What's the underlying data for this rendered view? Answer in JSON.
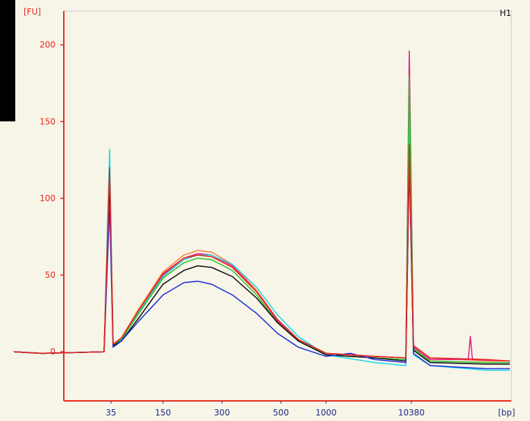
{
  "chart_data": {
    "type": "line",
    "title": "",
    "panel_label": "H1",
    "y_unit_label": "[FU]",
    "x_unit_label": "[bp]",
    "ylim": [
      -32,
      222
    ],
    "y_ticks": [
      0,
      50,
      100,
      150,
      200
    ],
    "x_ticks": [
      "35",
      "150",
      "300",
      "500",
      "1000",
      "10380"
    ],
    "grid": true,
    "legend": "none",
    "x_category_positions": {
      "35": 160,
      "150": 235,
      "300": 320,
      "500": 405,
      "1000": 470,
      "10380": 593
    },
    "series": [
      {
        "color": "#ff8040",
        "points": [
          [
            20,
            0
          ],
          [
            60,
            -1
          ],
          [
            150,
            0
          ],
          [
            158,
            120
          ],
          [
            163,
            5
          ],
          [
            175,
            9
          ],
          [
            200,
            28
          ],
          [
            235,
            52
          ],
          [
            265,
            63
          ],
          [
            285,
            66
          ],
          [
            305,
            65
          ],
          [
            335,
            57
          ],
          [
            370,
            40
          ],
          [
            400,
            21
          ],
          [
            430,
            8
          ],
          [
            470,
            -1
          ],
          [
            540,
            -3
          ],
          [
            585,
            -4
          ],
          [
            590,
            130
          ],
          [
            596,
            4
          ],
          [
            620,
            -4
          ],
          [
            700,
            -6
          ],
          [
            735,
            -6
          ]
        ]
      },
      {
        "color": "#e0208a",
        "points": [
          [
            20,
            0
          ],
          [
            60,
            -1
          ],
          [
            150,
            0
          ],
          [
            158,
            115
          ],
          [
            163,
            4
          ],
          [
            175,
            8
          ],
          [
            200,
            26
          ],
          [
            235,
            50
          ],
          [
            265,
            61
          ],
          [
            285,
            64
          ],
          [
            305,
            63
          ],
          [
            335,
            56
          ],
          [
            370,
            39
          ],
          [
            400,
            20
          ],
          [
            430,
            8
          ],
          [
            470,
            -1
          ],
          [
            540,
            -3
          ],
          [
            585,
            -4
          ],
          [
            590,
            196
          ],
          [
            596,
            3
          ],
          [
            620,
            -5
          ],
          [
            675,
            -5
          ],
          [
            678,
            10
          ],
          [
            681,
            -5
          ],
          [
            735,
            -6
          ]
        ]
      },
      {
        "color": "#20d8e8",
        "points": [
          [
            20,
            0
          ],
          [
            60,
            -1
          ],
          [
            150,
            0
          ],
          [
            158,
            132
          ],
          [
            163,
            4
          ],
          [
            175,
            8
          ],
          [
            200,
            26
          ],
          [
            235,
            49
          ],
          [
            265,
            60
          ],
          [
            285,
            63
          ],
          [
            305,
            63
          ],
          [
            335,
            57
          ],
          [
            370,
            42
          ],
          [
            400,
            24
          ],
          [
            430,
            10
          ],
          [
            470,
            -2
          ],
          [
            540,
            -7
          ],
          [
            585,
            -9
          ],
          [
            590,
            150
          ],
          [
            596,
            -2
          ],
          [
            620,
            -9
          ],
          [
            700,
            -12
          ],
          [
            735,
            -12
          ]
        ]
      },
      {
        "color": "#30c030",
        "points": [
          [
            20,
            0
          ],
          [
            60,
            -1
          ],
          [
            150,
            0
          ],
          [
            158,
            112
          ],
          [
            163,
            4
          ],
          [
            175,
            8
          ],
          [
            200,
            25
          ],
          [
            235,
            48
          ],
          [
            265,
            58
          ],
          [
            285,
            61
          ],
          [
            305,
            60
          ],
          [
            335,
            53
          ],
          [
            370,
            37
          ],
          [
            400,
            19
          ],
          [
            430,
            7
          ],
          [
            470,
            -2
          ],
          [
            540,
            -4
          ],
          [
            585,
            -5
          ],
          [
            590,
            180
          ],
          [
            596,
            2
          ],
          [
            620,
            -6
          ],
          [
            700,
            -7
          ],
          [
            735,
            -7
          ]
        ]
      },
      {
        "color": "#101010",
        "points": [
          [
            20,
            0
          ],
          [
            60,
            -1
          ],
          [
            150,
            0
          ],
          [
            158,
            108
          ],
          [
            163,
            4
          ],
          [
            175,
            7
          ],
          [
            200,
            22
          ],
          [
            235,
            44
          ],
          [
            265,
            53
          ],
          [
            285,
            56
          ],
          [
            305,
            55
          ],
          [
            335,
            49
          ],
          [
            370,
            35
          ],
          [
            400,
            19
          ],
          [
            430,
            7
          ],
          [
            470,
            -2
          ],
          [
            540,
            -4
          ],
          [
            585,
            -6
          ],
          [
            590,
            125
          ],
          [
            596,
            1
          ],
          [
            620,
            -7
          ],
          [
            700,
            -8
          ],
          [
            735,
            -8
          ]
        ]
      },
      {
        "color": "#2030d8",
        "points": [
          [
            20,
            0
          ],
          [
            60,
            -1
          ],
          [
            150,
            0
          ],
          [
            158,
            96
          ],
          [
            163,
            3
          ],
          [
            175,
            7
          ],
          [
            200,
            20
          ],
          [
            235,
            37
          ],
          [
            265,
            45
          ],
          [
            285,
            46
          ],
          [
            305,
            44
          ],
          [
            335,
            37
          ],
          [
            370,
            25
          ],
          [
            400,
            12
          ],
          [
            430,
            3
          ],
          [
            470,
            -3
          ],
          [
            505,
            -1
          ],
          [
            540,
            -5
          ],
          [
            585,
            -7
          ],
          [
            590,
            128
          ],
          [
            596,
            -1
          ],
          [
            620,
            -9
          ],
          [
            700,
            -11
          ],
          [
            735,
            -11
          ]
        ]
      },
      {
        "color": "#e8251a",
        "points": [
          [
            20,
            0
          ],
          [
            60,
            -1
          ],
          [
            150,
            0
          ],
          [
            158,
            120
          ],
          [
            163,
            5
          ],
          [
            175,
            9
          ],
          [
            200,
            27
          ],
          [
            235,
            51
          ],
          [
            265,
            61
          ],
          [
            285,
            63
          ],
          [
            305,
            62
          ],
          [
            335,
            55
          ],
          [
            370,
            39
          ],
          [
            400,
            21
          ],
          [
            430,
            8
          ],
          [
            470,
            -1
          ],
          [
            540,
            -3
          ],
          [
            585,
            -4
          ],
          [
            590,
            135
          ],
          [
            596,
            4
          ],
          [
            620,
            -4
          ],
          [
            700,
            -5
          ],
          [
            735,
            -6
          ]
        ]
      }
    ]
  },
  "colors": {
    "plot_background": "#f7f5e8",
    "axis_color": "#e8251a",
    "grid_color": "#a8b0c8",
    "label_color": "#1c2a8a"
  }
}
